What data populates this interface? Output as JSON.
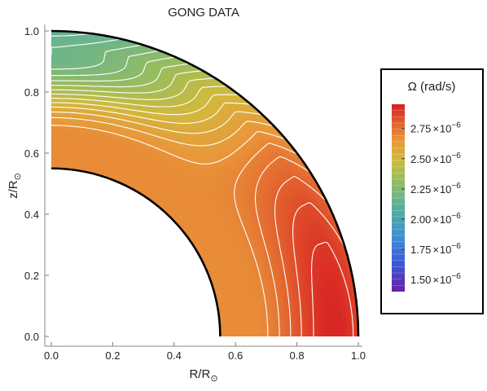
{
  "chart_data": {
    "type": "heatmap",
    "title": "GONG DATA",
    "xlabel": "R/R",
    "xlabel_sub": "⊙",
    "ylabel": "z/R",
    "ylabel_sub": "⊙",
    "xlim": [
      0.0,
      1.0
    ],
    "ylim": [
      0.0,
      1.0
    ],
    "x_ticks": [
      "0.0",
      "0.2",
      "0.4",
      "0.6",
      "0.8",
      "1.0"
    ],
    "y_ticks": [
      "0.0",
      "0.2",
      "0.4",
      "0.6",
      "0.8",
      "1.0"
    ],
    "inner_radius": 0.55,
    "outer_radius": 1.0,
    "grid": false,
    "legend": {
      "title": "Ω (rad/s)",
      "placement": "right",
      "range": [
        1.4e-06,
        2.95e-06
      ],
      "ticks": [
        {
          "value": 2.75e-06,
          "mantissa": "2.75",
          "times": "×",
          "base": "10",
          "exponent": "−6"
        },
        {
          "value": 2.5e-06,
          "mantissa": "2.50",
          "times": "×",
          "base": "10",
          "exponent": "−6"
        },
        {
          "value": 2.25e-06,
          "mantissa": "2.25",
          "times": "×",
          "base": "10",
          "exponent": "−6"
        },
        {
          "value": 2e-06,
          "mantissa": "2.00",
          "times": "×",
          "base": "10",
          "exponent": "−6"
        },
        {
          "value": 1.75e-06,
          "mantissa": "1.75",
          "times": "×",
          "base": "10",
          "exponent": "−6"
        },
        {
          "value": 1.5e-06,
          "mantissa": "1.50",
          "times": "×",
          "base": "10",
          "exponent": "−6"
        }
      ]
    },
    "color_stops": [
      {
        "value": 1.4e-06,
        "color": "#6a1fa8"
      },
      {
        "value": 1.62e-06,
        "color": "#3b55d6"
      },
      {
        "value": 1.85e-06,
        "color": "#3f8fd2"
      },
      {
        "value": 2.02e-06,
        "color": "#4aa6a8"
      },
      {
        "value": 2.18e-06,
        "color": "#6eb588"
      },
      {
        "value": 2.34e-06,
        "color": "#9cbd5a"
      },
      {
        "value": 2.5e-06,
        "color": "#d2b93c"
      },
      {
        "value": 2.65e-06,
        "color": "#e9973a"
      },
      {
        "value": 2.8e-06,
        "color": "#e25e2e"
      },
      {
        "value": 2.95e-06,
        "color": "#d81e22"
      }
    ],
    "contour_levels": [
      2.02e-06,
      2.06e-06,
      2.1e-06,
      2.14e-06,
      2.18e-06,
      2.22e-06,
      2.26e-06,
      2.3e-06,
      2.34e-06,
      2.38e-06,
      2.42e-06,
      2.46e-06,
      2.5e-06,
      2.54e-06,
      2.58e-06,
      2.62e-06,
      2.66e-06,
      2.7e-06,
      2.74e-06,
      2.79e-06,
      2.84e-06,
      2.89e-06
    ]
  }
}
